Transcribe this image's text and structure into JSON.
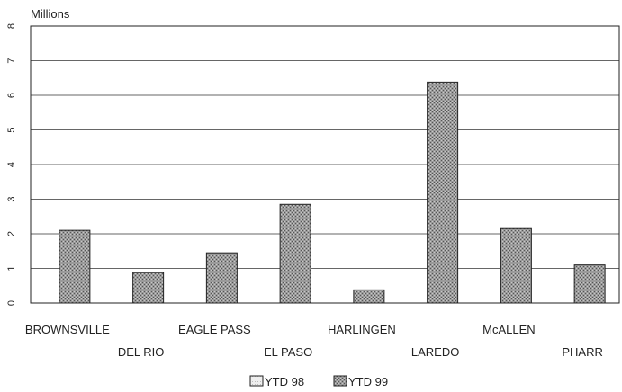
{
  "chart_data": {
    "type": "bar",
    "unit_label": "Millions",
    "categories": [
      "BROWNSVILLE",
      "DEL RIO",
      "EAGLE PASS",
      "EL PASO",
      "HARLINGEN",
      "LAREDO",
      "McALLEN",
      "PHARR"
    ],
    "series": [
      {
        "name": "YTD 98",
        "values": [
          0,
          0,
          0,
          0,
          0,
          0,
          0,
          0
        ]
      },
      {
        "name": "YTD 99",
        "values": [
          2.1,
          0.88,
          1.45,
          2.85,
          0.38,
          6.38,
          2.15,
          1.1
        ]
      }
    ],
    "y_ticks": [
      "0",
      "1",
      "2",
      "3",
      "4",
      "5",
      "6",
      "7",
      "8"
    ],
    "ylim": [
      0,
      8
    ],
    "grid": true,
    "legend_position": "bottom-center",
    "colors": {
      "ytd98": "#e6e6e6",
      "ytd99": "#8c8c8c"
    }
  }
}
